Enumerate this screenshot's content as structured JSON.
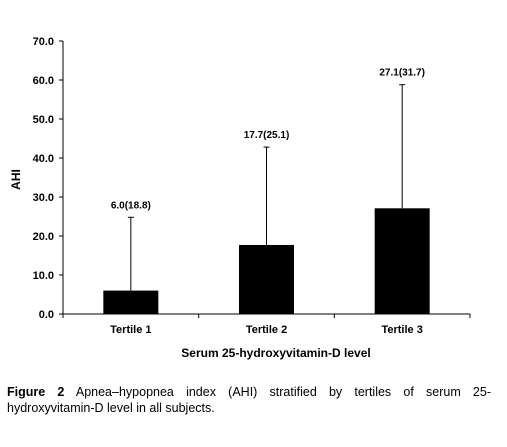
{
  "chart_data": {
    "type": "bar",
    "categories": [
      "Tertile 1",
      "Tertile 2",
      "Tertile 3"
    ],
    "values": [
      6.0,
      17.7,
      27.1
    ],
    "error_sd": [
      18.8,
      25.1,
      31.7
    ],
    "data_labels": [
      "6.0(18.8)",
      "17.7(25.1)",
      "27.1(31.7)"
    ],
    "ylim": [
      0,
      70
    ],
    "yticks": [
      "0.0",
      "10.0",
      "20.0",
      "30.0",
      "40.0",
      "50.0",
      "60.0",
      "70.0"
    ],
    "ylabel": "AHI",
    "xlabel": "Serum 25-hydroxyvitamin-D  level",
    "bar_color": "#000000",
    "grid": false
  },
  "caption": {
    "label": "Figure 2",
    "text": " Apnea–hypopnea index (AHI) stratified by tertiles of serum 25-hydroxyvitamin-D level in all subjects."
  }
}
